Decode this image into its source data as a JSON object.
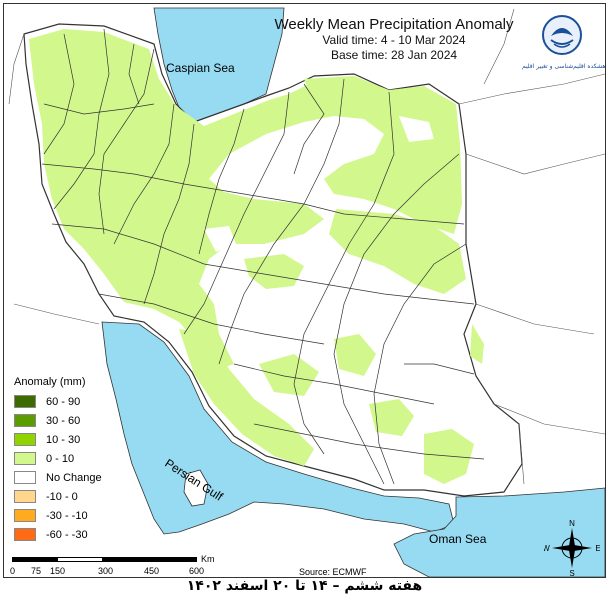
{
  "title": "Weekly Mean Precipitation Anomaly",
  "valid_time": "Valid time:  4 - 10 Mar 2024",
  "base_time": "Base time: 28 Jan 2024",
  "logo_caption": "پژوهشکده اقلیم‌شناسی و تغییر اقلیم",
  "seas": {
    "caspian": "Caspian Sea",
    "persian_gulf": "Persian Gulf",
    "oman": "Oman Sea"
  },
  "legend": {
    "title": "Anomaly (mm)",
    "items": [
      {
        "label": "60 - 90",
        "color": "#3d6b00"
      },
      {
        "label": "30 - 60",
        "color": "#5c9c00"
      },
      {
        "label": "10 - 30",
        "color": "#8fd400"
      },
      {
        "label": "0 - 10",
        "color": "#d2f78c"
      },
      {
        "label": "No Change",
        "color": "#ffffff"
      },
      {
        "label": "-10 - 0",
        "color": "#ffd68c"
      },
      {
        "label": "-30 - -10",
        "color": "#ffaa1f"
      },
      {
        "label": "-60 - -30",
        "color": "#ff6a14"
      }
    ]
  },
  "scale": {
    "ticks": [
      "0",
      "75",
      "150",
      "300",
      "450",
      "600"
    ],
    "unit": "Km"
  },
  "source": "Source: ECMWF",
  "compass": {
    "n": "N",
    "s": "S",
    "e": "E",
    "w": "W"
  },
  "footer": "هفته ششم – ۱۴ تا ۲۰ اسفند ۱۴۰۲",
  "colors": {
    "water": "#97dbf2",
    "land_positive": "#d2f78c",
    "border": "#333333"
  }
}
